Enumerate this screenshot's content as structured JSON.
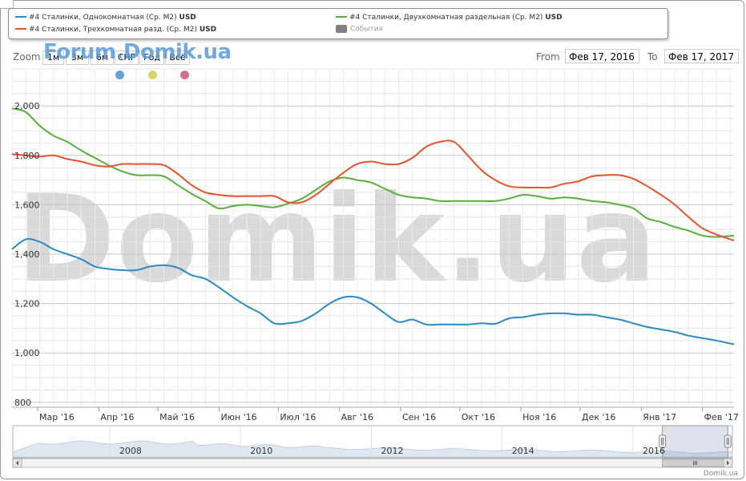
{
  "legend": {
    "items": [
      {
        "name": "#4 Сталинки, Однокомнатная (Ср. М2)",
        "unit": "USD",
        "color": "#2a8bc4"
      },
      {
        "name": "#4 Сталинки, Двухкомнатная раздельная (Ср. М2)",
        "unit": "USD",
        "color": "#57b03a"
      },
      {
        "name": "#4 Сталинки, Трехкомнатная разд. (Ср. М2)",
        "unit": "USD",
        "color": "#e5542a"
      }
    ],
    "events_label": "События",
    "events_color": "#808080"
  },
  "toolbar": {
    "zoom_label": "Zoom",
    "buttons": [
      "1м",
      "3м",
      "6м",
      "СНГ",
      "Год",
      "Всё"
    ],
    "from_label": "From",
    "from_value": "Фев 17, 2016",
    "to_label": "To",
    "to_value": "Фев 17, 2017"
  },
  "logo_text": "Forum.Domik.ua",
  "watermark": "Domik.ua",
  "credit": "Domik.ua",
  "dot_colors": [
    "#6a9fd4",
    "#d6d66a",
    "#d6708f"
  ],
  "chart_data": {
    "type": "line",
    "x": [
      "2016-02-17",
      "2016-02-24",
      "2016-03-02",
      "2016-03-09",
      "2016-03-16",
      "2016-03-23",
      "2016-03-30",
      "2016-04-06",
      "2016-04-13",
      "2016-04-20",
      "2016-04-27",
      "2016-05-04",
      "2016-05-11",
      "2016-05-18",
      "2016-05-25",
      "2016-06-01",
      "2016-06-08",
      "2016-06-15",
      "2016-06-22",
      "2016-06-29",
      "2016-07-06",
      "2016-07-13",
      "2016-07-20",
      "2016-07-27",
      "2016-08-03",
      "2016-08-10",
      "2016-08-17",
      "2016-08-24",
      "2016-08-31",
      "2016-09-07",
      "2016-09-14",
      "2016-09-21",
      "2016-09-28",
      "2016-10-05",
      "2016-10-12",
      "2016-10-19",
      "2016-10-26",
      "2016-11-02",
      "2016-11-09",
      "2016-11-16",
      "2016-11-23",
      "2016-11-30",
      "2016-12-07",
      "2016-12-14",
      "2016-12-21",
      "2016-12-28",
      "2017-01-04",
      "2017-01-11",
      "2017-01-18",
      "2017-01-25",
      "2017-02-01",
      "2017-02-08",
      "2017-02-17"
    ],
    "series": [
      {
        "name": "#4 Сталинки, Однокомнатная (Ср. М2)",
        "color": "#2a8bc4",
        "values": [
          1420,
          1460,
          1450,
          1420,
          1400,
          1380,
          1350,
          1340,
          1335,
          1335,
          1350,
          1355,
          1345,
          1315,
          1300,
          1265,
          1225,
          1190,
          1160,
          1120,
          1120,
          1130,
          1160,
          1200,
          1225,
          1225,
          1200,
          1160,
          1125,
          1135,
          1115,
          1115,
          1115,
          1115,
          1120,
          1118,
          1140,
          1145,
          1155,
          1160,
          1160,
          1155,
          1155,
          1145,
          1135,
          1120,
          1105,
          1095,
          1085,
          1070,
          1060,
          1050,
          1035
        ]
      },
      {
        "name": "#4 Сталинки, Двухкомнатная раздельная (Ср. М2)",
        "color": "#57b03a",
        "values": [
          1990,
          1975,
          1920,
          1880,
          1855,
          1820,
          1790,
          1760,
          1735,
          1720,
          1720,
          1715,
          1680,
          1645,
          1615,
          1585,
          1595,
          1600,
          1595,
          1590,
          1605,
          1625,
          1660,
          1695,
          1710,
          1700,
          1690,
          1665,
          1640,
          1630,
          1625,
          1615,
          1615,
          1615,
          1615,
          1615,
          1625,
          1640,
          1635,
          1625,
          1630,
          1625,
          1615,
          1610,
          1600,
          1585,
          1545,
          1530,
          1510,
          1495,
          1475,
          1470,
          1475
        ]
      },
      {
        "name": "#4 Сталинки, Трехкомнатная разд. (Ср. М2)",
        "color": "#e5542a",
        "values": [
          1805,
          1800,
          1795,
          1800,
          1785,
          1775,
          1760,
          1755,
          1765,
          1765,
          1765,
          1760,
          1725,
          1680,
          1650,
          1640,
          1635,
          1635,
          1635,
          1635,
          1610,
          1610,
          1640,
          1685,
          1730,
          1765,
          1775,
          1765,
          1765,
          1790,
          1835,
          1855,
          1855,
          1800,
          1740,
          1700,
          1675,
          1670,
          1670,
          1670,
          1685,
          1695,
          1715,
          1720,
          1720,
          1705,
          1675,
          1640,
          1600,
          1550,
          1505,
          1480,
          1455
        ]
      }
    ],
    "xlabels": [
      "Мар '16",
      "Апр '16",
      "Май '16",
      "Июн '16",
      "Июл '16",
      "Авг '16",
      "Сен '16",
      "Окт '16",
      "Ноя '16",
      "Дек '16",
      "Янв '17",
      "Фев '17"
    ],
    "xlabel_dates": [
      "2016-03-01",
      "2016-04-01",
      "2016-05-01",
      "2016-06-01",
      "2016-07-01",
      "2016-08-01",
      "2016-09-01",
      "2016-10-01",
      "2016-11-01",
      "2016-12-01",
      "2017-01-01",
      "2017-02-01"
    ],
    "xlim": [
      "2016-02-17",
      "2017-02-17"
    ],
    "yticks": [
      800,
      1000,
      1200,
      1400,
      1600,
      1800,
      2000
    ],
    "ytick_labels": [
      "800",
      "1,000",
      "1,200",
      "1,400",
      "1,600",
      "1,800",
      "2,000"
    ],
    "ylim": [
      780,
      2150
    ],
    "grid": true,
    "navigator": {
      "labels": [
        "2008",
        "2010",
        "2012",
        "2014",
        "2016"
      ],
      "label_years": [
        2008,
        2010,
        2012,
        2014,
        2016
      ],
      "xlim_years": [
        2006.2,
        2017.2
      ],
      "selected_years": [
        2016.13,
        2017.13
      ]
    }
  }
}
